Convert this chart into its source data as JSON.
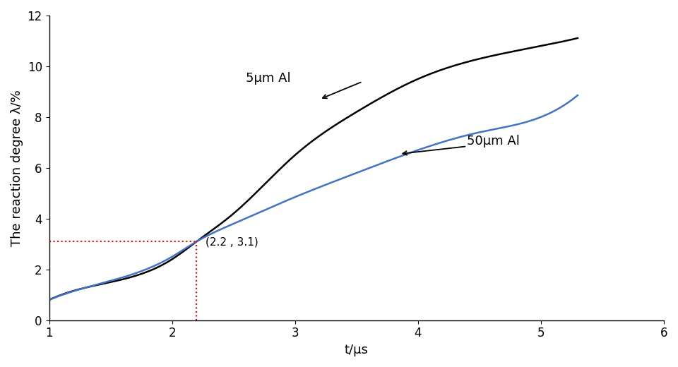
{
  "xlabel": "t/μs",
  "ylabel": "The reaction degree λ/%",
  "xlim": [
    1,
    6
  ],
  "ylim": [
    0,
    12
  ],
  "xticks": [
    1,
    2,
    3,
    4,
    5,
    6
  ],
  "yticks": [
    0,
    2,
    4,
    6,
    8,
    10,
    12
  ],
  "annotation_point": [
    2.2,
    3.1
  ],
  "annotation_text": "(2.2 , 3.1)",
  "label_5um": "5μm Al",
  "label_50um": "50μm Al",
  "color_5um": "#000000",
  "color_50um": "#4472C4",
  "color_dotted": "#FF0000",
  "bg_color": "#ffffff",
  "linewidth": 1.8,
  "fontsize_label": 13,
  "fontsize_annot": 11,
  "fontsize_tick": 12
}
